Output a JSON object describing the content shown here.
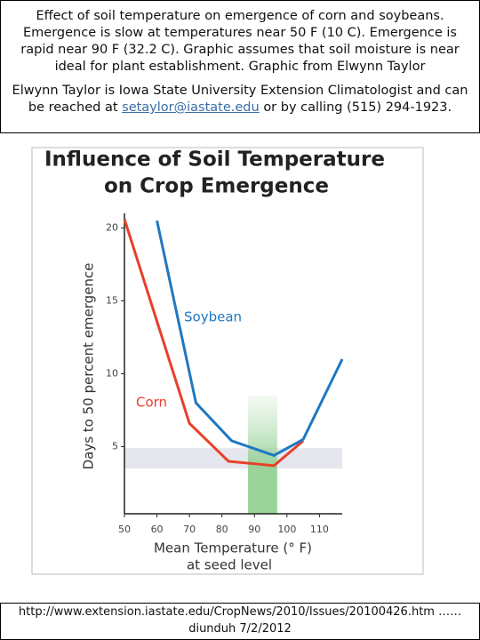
{
  "caption": {
    "paragraph1": "Effect of soil temperature on emergence of corn and soybeans. Emergence is slow at temperatures near 50 F (10 C). Emergence is rapid near 90 F (32.2 C). Graphic assumes that soil moisture is near ideal for plant establishment. Graphic from Elwynn Taylor",
    "paragraph2_before": "Elwynn Taylor is Iowa State University Extension Climatologist and can be reached at",
    "email": "setaylor@iastate.edu",
    "paragraph2_after": "or by calling (515) 294-1923."
  },
  "chart_data": {
    "type": "line",
    "title": [
      "Influence of Soil Temperature",
      "on Crop Emergence"
    ],
    "xlabel": [
      "Mean Temperature (° F)",
      "at seed level"
    ],
    "ylabel": "Days to 50 percent emergence",
    "xlim": [
      50,
      117
    ],
    "ylim": [
      0.4,
      21
    ],
    "xticks": [
      50,
      60,
      70,
      80,
      90,
      100,
      110
    ],
    "yticks": [
      5,
      10,
      15,
      20
    ],
    "highlight_x": [
      88,
      97
    ],
    "highlight_y": [
      3.5,
      4.9
    ],
    "series": [
      {
        "name": "Corn",
        "color": "#e8402a",
        "x": [
          50,
          70,
          82,
          96,
          105
        ],
        "values": [
          20.6,
          6.6,
          4.0,
          3.7,
          5.4
        ]
      },
      {
        "name": "Soybean",
        "color": "#1f78c1",
        "x": [
          60,
          72,
          83,
          96,
          105,
          117
        ],
        "values": [
          20.5,
          8.0,
          5.4,
          4.4,
          5.5,
          11.0
        ]
      }
    ]
  },
  "footer": {
    "url": "http://www.extension.iastate.edu/CropNews/2010/Issues/20100426.htm ……",
    "date": "diunduh 7/2/2012"
  }
}
